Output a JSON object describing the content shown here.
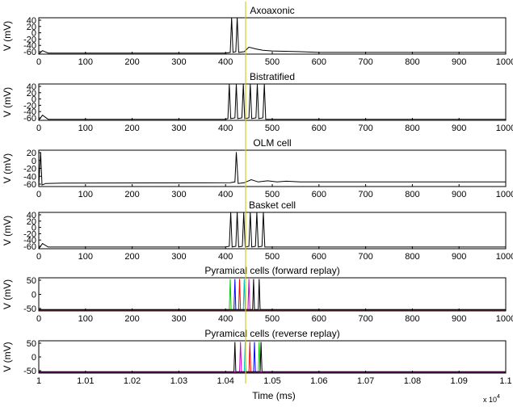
{
  "figure": {
    "xlabel": "Time (ms)",
    "multiplier_base": "x 10",
    "multiplier_exp": "4"
  },
  "chart_data": [
    {
      "type": "line",
      "title": "Axoaxonic",
      "ylabel": "V (mV)",
      "xlim": [
        0,
        1000
      ],
      "ylim": [
        -65,
        40
      ],
      "x_ticks": [
        "0",
        "100",
        "200",
        "300",
        "400",
        "500",
        "600",
        "700",
        "800",
        "900",
        "1000"
      ],
      "y_ticks": [
        "40",
        "20",
        "0",
        "-20",
        "-40",
        "-60"
      ],
      "series": [
        {
          "color": "#000000",
          "values": [
            [
              0,
              -65
            ],
            [
              8,
              -55
            ],
            [
              20,
              -62
            ],
            [
              40,
              -62
            ],
            [
              400,
              -62
            ],
            [
              410,
              -60
            ],
            [
              413,
              40
            ],
            [
              416,
              -60
            ],
            [
              422,
              -58
            ],
            [
              425,
              40
            ],
            [
              428,
              -60
            ],
            [
              440,
              -58
            ],
            [
              450,
              -45
            ],
            [
              465,
              -50
            ],
            [
              480,
              -54
            ],
            [
              500,
              -56
            ],
            [
              560,
              -58
            ],
            [
              600,
              -60
            ],
            [
              1000,
              -60
            ]
          ]
        }
      ]
    },
    {
      "type": "line",
      "title": "Bistratified",
      "ylabel": "V (mV)",
      "xlim": [
        0,
        1000
      ],
      "ylim": [
        -65,
        40
      ],
      "x_ticks": [
        "0",
        "100",
        "200",
        "300",
        "400",
        "500",
        "600",
        "700",
        "800",
        "900",
        "1000"
      ],
      "y_ticks": [
        "40",
        "20",
        "0",
        "-20",
        "-40",
        "-60"
      ],
      "series": [
        {
          "color": "#000000",
          "values": [
            [
              0,
              -65
            ],
            [
              8,
              -50
            ],
            [
              20,
              -62
            ],
            [
              40,
              -62
            ],
            [
              400,
              -62
            ],
            [
              405,
              -60
            ],
            [
              408,
              40
            ],
            [
              411,
              -60
            ],
            [
              420,
              -58
            ],
            [
              423,
              40
            ],
            [
              426,
              -60
            ],
            [
              435,
              -58
            ],
            [
              438,
              40
            ],
            [
              441,
              -60
            ],
            [
              450,
              -58
            ],
            [
              453,
              40
            ],
            [
              456,
              -60
            ],
            [
              465,
              -58
            ],
            [
              468,
              40
            ],
            [
              471,
              -60
            ],
            [
              480,
              -58
            ],
            [
              483,
              40
            ],
            [
              486,
              -62
            ],
            [
              1000,
              -62
            ]
          ]
        }
      ]
    },
    {
      "type": "line",
      "title": "OLM cell",
      "ylabel": "V (mV)",
      "xlim": [
        0,
        1000
      ],
      "ylim": [
        -70,
        25
      ],
      "x_ticks": [
        "0",
        "100",
        "200",
        "300",
        "400",
        "500",
        "600",
        "700",
        "800",
        "900",
        "1000"
      ],
      "y_ticks": [
        "20",
        "0",
        "-20",
        "-40",
        "-60"
      ],
      "series": [
        {
          "color": "#000000",
          "values": [
            [
              0,
              -70
            ],
            [
              4,
              20
            ],
            [
              7,
              -66
            ],
            [
              15,
              -62
            ],
            [
              50,
              -61
            ],
            [
              410,
              -60
            ],
            [
              420,
              -58
            ],
            [
              423,
              20
            ],
            [
              427,
              -62
            ],
            [
              440,
              -60
            ],
            [
              455,
              -52
            ],
            [
              470,
              -58
            ],
            [
              490,
              -55
            ],
            [
              510,
              -58
            ],
            [
              530,
              -56
            ],
            [
              560,
              -58
            ],
            [
              600,
              -58
            ],
            [
              1000,
              -58
            ]
          ]
        }
      ]
    },
    {
      "type": "line",
      "title": "Basket cell",
      "ylabel": "V (mV)",
      "xlim": [
        0,
        1000
      ],
      "ylim": [
        -65,
        40
      ],
      "x_ticks": [
        "0",
        "100",
        "200",
        "300",
        "400",
        "500",
        "600",
        "700",
        "800",
        "900",
        "1000"
      ],
      "y_ticks": [
        "40",
        "20",
        "0",
        "-20",
        "-40",
        "-60"
      ],
      "series": [
        {
          "color": "#000000",
          "values": [
            [
              0,
              -65
            ],
            [
              8,
              -50
            ],
            [
              20,
              -60
            ],
            [
              40,
              -60
            ],
            [
              400,
              -60
            ],
            [
              408,
              -58
            ],
            [
              411,
              40
            ],
            [
              414,
              -60
            ],
            [
              422,
              -58
            ],
            [
              425,
              40
            ],
            [
              428,
              -60
            ],
            [
              436,
              -58
            ],
            [
              439,
              40
            ],
            [
              442,
              -60
            ],
            [
              450,
              -58
            ],
            [
              453,
              40
            ],
            [
              456,
              -60
            ],
            [
              464,
              -58
            ],
            [
              467,
              40
            ],
            [
              470,
              -60
            ],
            [
              478,
              -58
            ],
            [
              481,
              40
            ],
            [
              484,
              -60
            ],
            [
              1000,
              -60
            ]
          ]
        }
      ]
    },
    {
      "type": "line",
      "title": "Pyramical cells (forward replay)",
      "ylabel": "V (mV)",
      "xlim": [
        0,
        1000
      ],
      "ylim": [
        -75,
        60
      ],
      "x_ticks": [
        "0",
        "100",
        "200",
        "300",
        "400",
        "500",
        "600",
        "700",
        "800",
        "900",
        "1000"
      ],
      "y_ticks": [
        "50",
        "0",
        "-50"
      ],
      "series": [
        {
          "color": "#00cc00",
          "values": [
            [
              0,
              -72
            ],
            [
              408,
              -72
            ],
            [
              410,
              55
            ],
            [
              412,
              -72
            ],
            [
              1000,
              -72
            ]
          ]
        },
        {
          "color": "#0000ff",
          "values": [
            [
              0,
              -71
            ],
            [
              418,
              -71
            ],
            [
              420,
              55
            ],
            [
              422,
              -71
            ],
            [
              1000,
              -71
            ]
          ]
        },
        {
          "color": "#ff0000",
          "values": [
            [
              0,
              -71
            ],
            [
              428,
              -71
            ],
            [
              430,
              55
            ],
            [
              432,
              -71
            ],
            [
              1000,
              -71
            ]
          ]
        },
        {
          "color": "#00bbbb",
          "values": [
            [
              0,
              -70
            ],
            [
              438,
              -70
            ],
            [
              440,
              55
            ],
            [
              442,
              -70
            ],
            [
              1000,
              -70
            ]
          ]
        },
        {
          "color": "#cc00cc",
          "values": [
            [
              0,
              -70
            ],
            [
              448,
              -70
            ],
            [
              450,
              55
            ],
            [
              452,
              -70
            ],
            [
              1000,
              -70
            ]
          ]
        },
        {
          "color": "#000000",
          "values": [
            [
              0,
              -69
            ],
            [
              458,
              -69
            ],
            [
              460,
              55
            ],
            [
              462,
              -69
            ],
            [
              470,
              -69
            ],
            [
              472,
              55
            ],
            [
              474,
              -69
            ],
            [
              1000,
              -69
            ]
          ]
        }
      ]
    },
    {
      "type": "line",
      "title": "Pyramical cells (reverse replay)",
      "ylabel": "V (mV)",
      "xlabel": "Time (ms)",
      "xlim": [
        10000,
        11000
      ],
      "ylim": [
        -75,
        60
      ],
      "x_ticks": [
        "1",
        "1.01",
        "1.02",
        "1.03",
        "1.04",
        "1.05",
        "1.06",
        "1.07",
        "1.08",
        "1.09",
        "1.1"
      ],
      "y_ticks": [
        "50",
        "0",
        "-50"
      ],
      "series": [
        {
          "color": "#00cc00",
          "values": [
            [
              10000,
              -72
            ],
            [
              10470,
              -72
            ],
            [
              10472,
              55
            ],
            [
              10474,
              -72
            ],
            [
              11000,
              -72
            ]
          ]
        },
        {
          "color": "#0000ff",
          "values": [
            [
              10000,
              -71
            ],
            [
              10460,
              -71
            ],
            [
              10462,
              55
            ],
            [
              10464,
              -71
            ],
            [
              11000,
              -71
            ]
          ]
        },
        {
          "color": "#ff0000",
          "values": [
            [
              10000,
              -71
            ],
            [
              10450,
              -71
            ],
            [
              10452,
              55
            ],
            [
              10454,
              -71
            ],
            [
              11000,
              -71
            ]
          ]
        },
        {
          "color": "#00bbbb",
          "values": [
            [
              10000,
              -70
            ],
            [
              10440,
              -70
            ],
            [
              10442,
              55
            ],
            [
              10444,
              -70
            ],
            [
              11000,
              -70
            ]
          ]
        },
        {
          "color": "#cc00cc",
          "values": [
            [
              10000,
              -70
            ],
            [
              10430,
              -70
            ],
            [
              10432,
              55
            ],
            [
              10434,
              -70
            ],
            [
              11000,
              -70
            ]
          ]
        },
        {
          "color": "#000000",
          "values": [
            [
              10000,
              -69
            ],
            [
              10418,
              -69
            ],
            [
              10420,
              55
            ],
            [
              10422,
              -69
            ],
            [
              10474,
              -69
            ],
            [
              10476,
              55
            ],
            [
              10478,
              -69
            ],
            [
              11000,
              -69
            ]
          ]
        }
      ]
    }
  ],
  "marker_line": {
    "color": "#cccc33",
    "x_fraction": 0.443
  }
}
